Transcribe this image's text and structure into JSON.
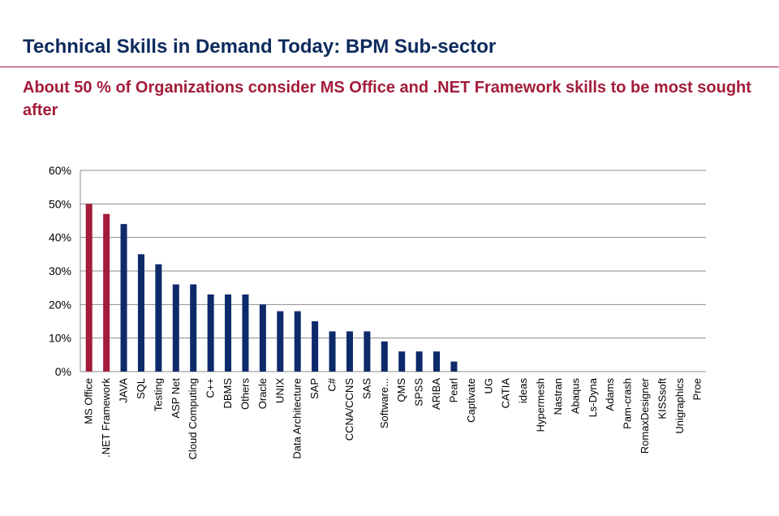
{
  "header": {
    "title": "Technical Skills in Demand Today: BPM Sub-sector",
    "subtitle": "About 50 %  of Organizations consider MS Office and .NET Framework skills to be most sought after"
  },
  "chart_data": {
    "type": "bar",
    "title": "",
    "xlabel": "",
    "ylabel": "",
    "ylim": [
      0,
      60
    ],
    "yticks": [
      "0%",
      "10%",
      "20%",
      "30%",
      "40%",
      "50%",
      "60%"
    ],
    "grid": true,
    "legend": "none",
    "colors": {
      "highlight": "#a31c3a",
      "default": "#0d2a6b",
      "grid": "#8c8c8c"
    },
    "categories": [
      "MS Office",
      ".NET Framework",
      "JAVA",
      "SQL",
      "Testing",
      "ASP Net",
      "Cloud Computing",
      "C++",
      "DBMS",
      "Others",
      "Oracle",
      "UNIX",
      "Data Architecture",
      "SAP",
      "C#",
      "CCNA/CCNS",
      "SAS",
      "Software...",
      "QMS",
      "SPSS",
      "ARIBA",
      "Pearl",
      "Captivate",
      "UG",
      "CATIA",
      "ideas",
      "Hypermesh",
      "Nastran",
      "Abaqus",
      "Ls-Dyna",
      "Adams",
      "Pam-crash",
      "RomaxDesigner",
      "KISSsoft",
      "Unigraphics",
      "Proe"
    ],
    "values": [
      50,
      47,
      44,
      35,
      32,
      26,
      26,
      23,
      23,
      23,
      20,
      18,
      18,
      15,
      12,
      12,
      12,
      9,
      6,
      6,
      6,
      3,
      0,
      0,
      0,
      0,
      0,
      0,
      0,
      0,
      0,
      0,
      0,
      0,
      0,
      0
    ],
    "highlighted": [
      "MS Office",
      ".NET Framework"
    ]
  }
}
